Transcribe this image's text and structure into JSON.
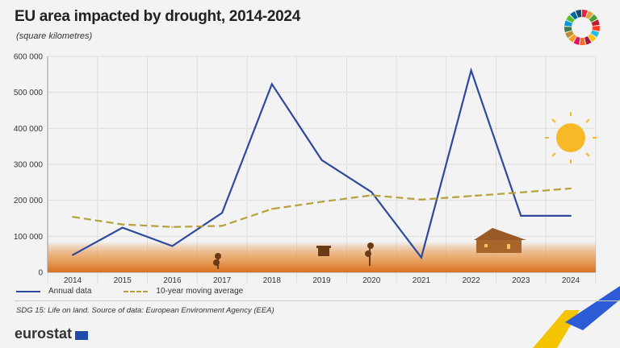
{
  "header": {
    "title": "EU area impacted by drought, 2014-2024",
    "subtitle": "(square kilometres)"
  },
  "footer": {
    "source": "SDG 15: Life on land. Source of data: European Environment Agency (EEA)",
    "brand": "eurostat"
  },
  "colors": {
    "annual": "#2e4a9e",
    "average": "#b5a03a",
    "ground": "#e07d2a",
    "sun": "#f7b928"
  },
  "icons": [
    "sdg-wheel-icon",
    "sun-icon",
    "house-icon",
    "well-icon",
    "plant-icon",
    "eu-flag-icon"
  ],
  "chart_data": {
    "type": "line",
    "title": "EU area impacted by drought, 2014-2024",
    "ylabel": "(square kilometres)",
    "ylim": [
      0,
      600000
    ],
    "yticks": [
      0,
      100000,
      200000,
      300000,
      400000,
      500000,
      600000
    ],
    "ytick_labels": [
      "0",
      "100 000",
      "200 000",
      "300 000",
      "400 000",
      "500 000",
      "600 000"
    ],
    "categories": [
      "2014",
      "2015",
      "2016",
      "2017",
      "2018",
      "2019",
      "2020",
      "2021",
      "2022",
      "2023",
      "2024"
    ],
    "grid": true,
    "legend": "bottom-left",
    "series": [
      {
        "name": "Annual data",
        "values": [
          48000,
          124000,
          73000,
          165000,
          523000,
          312000,
          223000,
          41000,
          561000,
          157000,
          157000
        ]
      },
      {
        "name": "10-year moving average",
        "values": [
          154000,
          133000,
          126000,
          129000,
          176000,
          196000,
          214000,
          202000,
          212000,
          222000,
          233000
        ]
      }
    ]
  }
}
